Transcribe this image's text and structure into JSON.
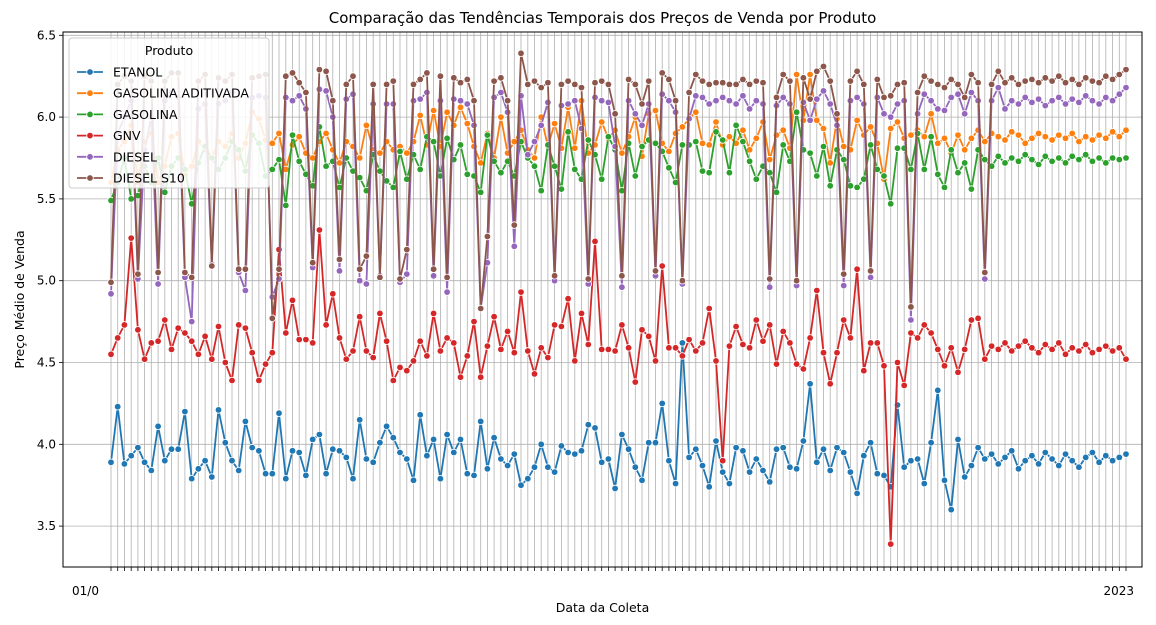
{
  "chart_data": {
    "type": "line",
    "title": "Comparação das Tendências Temporais dos Preços de Venda por Produto",
    "xlabel": "Data da Coleta",
    "ylabel": "Preço Médio de Venda",
    "ylim": [
      3.25,
      6.52
    ],
    "yticks": [
      "3.5",
      "4.0",
      "4.5",
      "5.0",
      "5.5",
      "6.0",
      "6.5"
    ],
    "grid": true,
    "legend": {
      "title": "Produto",
      "placement": "top-left"
    },
    "x_tick_text": {
      "first": "01/0",
      "last": "2023"
    },
    "n_points": 152,
    "series": [
      {
        "name": "ETANOL",
        "color": "#1f77b4",
        "values": [
          3.89,
          4.23,
          3.88,
          3.93,
          3.98,
          3.89,
          3.84,
          4.11,
          3.9,
          3.97,
          3.97,
          4.2,
          3.79,
          3.85,
          3.9,
          3.8,
          4.21,
          4.01,
          3.9,
          3.84,
          4.14,
          3.98,
          3.96,
          3.82,
          3.82,
          4.19,
          3.79,
          3.96,
          3.95,
          3.81,
          4.03,
          4.06,
          3.82,
          3.97,
          3.96,
          3.92,
          3.79,
          4.15,
          3.91,
          3.89,
          4.01,
          4.11,
          4.04,
          3.95,
          3.91,
          3.78,
          4.18,
          3.93,
          4.03,
          3.79,
          4.06,
          3.95,
          4.03,
          3.82,
          3.81,
          4.14,
          3.85,
          4.04,
          3.91,
          3.87,
          3.94,
          3.75,
          3.79,
          3.86,
          4.0,
          3.86,
          3.83,
          3.99,
          3.95,
          3.94,
          3.96,
          4.12,
          4.1,
          3.89,
          3.91,
          3.73,
          4.06,
          3.97,
          3.86,
          3.78,
          4.01,
          4.01,
          4.25,
          3.9,
          3.76,
          4.62,
          3.92,
          3.97,
          3.87,
          3.74,
          4.02,
          3.83,
          3.76,
          3.98,
          3.96,
          3.83,
          3.91,
          3.84,
          3.77,
          3.97,
          3.98,
          3.86,
          3.85,
          4.02,
          4.37,
          3.89,
          3.97,
          3.84,
          3.98,
          3.95,
          3.83,
          3.7,
          3.93,
          4.01,
          3.82,
          3.81,
          3.74,
          4.24,
          3.86,
          3.9,
          3.91,
          3.76,
          4.01,
          4.33,
          3.78,
          3.6,
          4.03,
          3.8,
          3.87,
          3.98,
          3.91,
          3.94,
          3.88,
          3.92,
          3.96,
          3.85,
          3.9,
          3.93,
          3.88,
          3.95,
          3.91,
          3.87,
          3.94,
          3.9,
          3.86,
          3.92,
          3.95,
          3.89,
          3.93,
          3.9,
          3.92,
          3.94
        ]
      },
      {
        "name": "GASOLINA ADITIVADA",
        "color": "#ff7f0e",
        "values": [
          5.6,
          5.8,
          5.85,
          5.95,
          5.6,
          5.85,
          5.9,
          5.6,
          5.7,
          5.88,
          5.9,
          5.65,
          5.7,
          5.85,
          5.8,
          5.75,
          5.85,
          5.82,
          5.9,
          5.75,
          5.84,
          6.03,
          5.99,
          5.86,
          5.84,
          5.9,
          5.68,
          5.83,
          5.88,
          5.78,
          5.75,
          5.85,
          5.9,
          5.8,
          5.72,
          5.85,
          5.82,
          5.75,
          5.95,
          5.8,
          5.78,
          5.85,
          5.8,
          5.82,
          5.78,
          5.85,
          6.01,
          5.83,
          6.04,
          5.82,
          6.03,
          5.95,
          6.06,
          5.96,
          5.82,
          5.72,
          5.9,
          5.75,
          6.0,
          5.78,
          5.85,
          5.92,
          5.8,
          5.75,
          6.0,
          5.82,
          5.96,
          5.81,
          6.06,
          5.81,
          6.1,
          5.78,
          5.83,
          5.97,
          5.87,
          5.92,
          5.78,
          5.88,
          6.0,
          5.76,
          6.02,
          6.04,
          5.84,
          5.79,
          5.9,
          5.94,
          5.99,
          6.03,
          5.84,
          5.83,
          5.97,
          5.83,
          5.88,
          5.84,
          5.92,
          5.8,
          5.87,
          5.97,
          5.74,
          5.89,
          5.92,
          5.81,
          6.26,
          5.98,
          6.26,
          5.98,
          5.93,
          5.72,
          5.99,
          5.82,
          5.8,
          5.98,
          5.89,
          5.94,
          5.84,
          5.62,
          5.93,
          5.97,
          5.87,
          5.89,
          5.92,
          5.88,
          6.02,
          5.84,
          5.87,
          5.78,
          5.89,
          5.8,
          5.87,
          5.92,
          5.85,
          5.9,
          5.88,
          5.86,
          5.91,
          5.89,
          5.84,
          5.87,
          5.9,
          5.88,
          5.86,
          5.89,
          5.87,
          5.9,
          5.85,
          5.88,
          5.86,
          5.89,
          5.87,
          5.91,
          5.88,
          5.92
        ]
      },
      {
        "name": "GASOLINA",
        "color": "#2ca02c",
        "values": [
          5.49,
          5.6,
          5.75,
          5.5,
          5.52,
          5.7,
          5.6,
          5.75,
          5.54,
          5.7,
          5.75,
          5.68,
          5.47,
          5.72,
          5.82,
          5.75,
          5.68,
          5.75,
          5.85,
          5.8,
          5.67,
          5.89,
          5.84,
          5.64,
          5.68,
          5.74,
          5.46,
          5.89,
          5.73,
          5.65,
          5.58,
          5.94,
          5.7,
          5.73,
          5.57,
          5.75,
          5.67,
          5.63,
          5.55,
          5.77,
          5.67,
          5.61,
          5.57,
          5.79,
          5.62,
          5.77,
          5.68,
          5.88,
          5.85,
          5.64,
          5.87,
          5.74,
          5.83,
          5.65,
          5.64,
          5.54,
          5.89,
          5.73,
          5.66,
          5.73,
          5.64,
          5.85,
          5.75,
          5.7,
          5.55,
          5.83,
          5.7,
          5.56,
          5.91,
          5.68,
          5.62,
          5.86,
          5.77,
          5.62,
          5.88,
          5.8,
          5.55,
          5.84,
          5.64,
          5.82,
          5.86,
          5.84,
          5.79,
          5.69,
          5.6,
          5.83,
          5.83,
          5.85,
          5.67,
          5.66,
          5.91,
          5.86,
          5.66,
          5.95,
          5.85,
          5.73,
          5.62,
          5.7,
          5.66,
          5.54,
          5.83,
          5.73,
          6.03,
          5.8,
          5.78,
          5.64,
          5.82,
          5.58,
          5.8,
          5.74,
          5.58,
          5.57,
          5.62,
          5.83,
          5.68,
          5.64,
          5.47,
          5.81,
          5.81,
          5.68,
          5.9,
          5.68,
          5.88,
          5.65,
          5.57,
          5.8,
          5.66,
          5.72,
          5.56,
          5.8,
          5.74,
          5.7,
          5.76,
          5.72,
          5.75,
          5.73,
          5.77,
          5.74,
          5.71,
          5.76,
          5.73,
          5.75,
          5.72,
          5.76,
          5.74,
          5.77,
          5.73,
          5.75,
          5.72,
          5.75,
          5.74,
          5.75
        ]
      },
      {
        "name": "GNV",
        "color": "#d62728",
        "values": [
          4.55,
          4.65,
          4.73,
          5.26,
          4.7,
          4.52,
          4.62,
          4.63,
          4.76,
          4.58,
          4.71,
          4.68,
          4.63,
          4.55,
          4.66,
          4.52,
          4.72,
          4.5,
          4.39,
          4.73,
          4.71,
          4.56,
          4.39,
          4.49,
          4.56,
          5.19,
          4.68,
          4.88,
          4.64,
          4.64,
          4.62,
          5.31,
          4.73,
          4.92,
          4.65,
          4.52,
          4.57,
          4.78,
          4.57,
          4.53,
          4.8,
          4.63,
          4.39,
          4.47,
          4.45,
          4.51,
          4.63,
          4.54,
          4.8,
          4.57,
          4.65,
          4.62,
          4.41,
          4.54,
          4.75,
          4.41,
          4.6,
          4.78,
          4.58,
          4.69,
          4.56,
          4.93,
          4.57,
          4.43,
          4.59,
          4.53,
          4.73,
          4.72,
          4.89,
          4.51,
          4.8,
          4.61,
          5.24,
          4.58,
          4.58,
          4.57,
          4.73,
          4.59,
          4.38,
          4.7,
          4.66,
          4.51,
          5.09,
          4.59,
          4.59,
          4.54,
          4.64,
          4.57,
          4.62,
          4.83,
          4.51,
          3.9,
          4.6,
          4.72,
          4.61,
          4.59,
          4.76,
          4.63,
          4.73,
          4.49,
          4.69,
          4.62,
          4.49,
          4.46,
          4.65,
          4.94,
          4.56,
          4.37,
          4.56,
          4.76,
          4.65,
          5.07,
          4.45,
          4.62,
          4.62,
          4.48,
          3.39,
          4.5,
          4.36,
          4.68,
          4.65,
          4.73,
          4.68,
          4.58,
          4.48,
          4.59,
          4.44,
          4.58,
          4.76,
          4.77,
          4.52,
          4.6,
          4.58,
          4.62,
          4.57,
          4.6,
          4.63,
          4.59,
          4.56,
          4.61,
          4.58,
          4.62,
          4.55,
          4.59,
          4.57,
          4.61,
          4.56,
          4.58,
          4.6,
          4.57,
          4.59,
          4.52
        ]
      },
      {
        "name": "DIESEL",
        "color": "#9467bd",
        "values": [
          4.92,
          5.9,
          6.0,
          6.1,
          5.01,
          5.8,
          6.0,
          4.98,
          6.1,
          6.15,
          6.12,
          5.02,
          4.75,
          6.05,
          6.08,
          5.1,
          6.08,
          6.1,
          6.15,
          5.05,
          4.94,
          6.12,
          6.13,
          6.12,
          4.9,
          5.01,
          6.12,
          6.1,
          6.13,
          6.05,
          5.08,
          6.17,
          6.16,
          6.0,
          5.06,
          6.11,
          6.14,
          5.0,
          4.98,
          6.08,
          5.03,
          6.08,
          6.08,
          4.99,
          5.04,
          6.1,
          6.11,
          6.15,
          5.03,
          6.1,
          4.93,
          6.11,
          6.1,
          6.08,
          5.95,
          4.83,
          5.11,
          6.12,
          6.15,
          6.03,
          5.21,
          6.13,
          5.77,
          5.85,
          5.95,
          6.09,
          5.0,
          6.07,
          6.08,
          6.1,
          5.93,
          4.98,
          6.12,
          6.1,
          6.09,
          5.82,
          4.96,
          6.1,
          6.02,
          5.95,
          6.08,
          5.03,
          6.14,
          6.1,
          6.03,
          4.98,
          5.99,
          6.13,
          6.12,
          6.08,
          6.1,
          6.12,
          6.1,
          6.08,
          6.13,
          6.05,
          6.1,
          6.08,
          4.96,
          6.07,
          6.12,
          6.08,
          4.97,
          6.09,
          5.98,
          6.11,
          6.16,
          6.08,
          5.95,
          4.97,
          6.1,
          6.12,
          6.08,
          5.02,
          6.12,
          6.02,
          6.0,
          6.08,
          6.1,
          4.76,
          6.02,
          6.14,
          6.1,
          6.05,
          6.04,
          6.12,
          6.14,
          6.02,
          6.15,
          6.1,
          5.01,
          6.1,
          6.18,
          6.05,
          6.1,
          6.08,
          6.12,
          6.09,
          6.11,
          6.07,
          6.1,
          6.12,
          6.08,
          6.11,
          6.09,
          6.13,
          6.1,
          6.08,
          6.12,
          6.1,
          6.14,
          6.18
        ]
      },
      {
        "name": "DIESEL S10",
        "color": "#8c564b",
        "values": [
          4.99,
          6.2,
          6.25,
          6.22,
          5.04,
          6.25,
          6.22,
          5.05,
          6.22,
          6.27,
          6.27,
          5.05,
          5.02,
          6.22,
          6.26,
          5.09,
          6.24,
          6.22,
          6.26,
          5.07,
          5.07,
          6.24,
          6.25,
          6.26,
          4.77,
          5.07,
          6.25,
          6.27,
          6.21,
          6.15,
          5.11,
          6.29,
          6.28,
          6.1,
          5.13,
          6.2,
          6.25,
          5.07,
          5.15,
          6.2,
          5.02,
          6.2,
          6.22,
          5.01,
          5.19,
          6.2,
          6.23,
          6.27,
          5.07,
          6.25,
          5.02,
          6.24,
          6.21,
          6.23,
          6.1,
          4.83,
          5.27,
          6.22,
          6.24,
          6.1,
          5.34,
          6.39,
          6.2,
          6.22,
          6.18,
          6.21,
          5.03,
          6.2,
          6.22,
          6.2,
          6.18,
          5.01,
          6.21,
          6.22,
          6.2,
          6.02,
          5.03,
          6.23,
          6.2,
          6.08,
          6.22,
          5.06,
          6.27,
          6.23,
          6.1,
          5.0,
          6.15,
          6.26,
          6.22,
          6.2,
          6.21,
          6.21,
          6.2,
          6.2,
          6.23,
          6.2,
          6.22,
          6.21,
          5.01,
          6.12,
          6.26,
          6.22,
          5.0,
          6.24,
          6.11,
          6.28,
          6.31,
          6.22,
          6.02,
          5.04,
          6.22,
          6.28,
          6.2,
          5.06,
          6.23,
          6.12,
          6.13,
          6.2,
          6.21,
          4.84,
          6.15,
          6.25,
          6.22,
          6.2,
          6.18,
          6.23,
          6.2,
          6.12,
          6.26,
          6.21,
          5.05,
          6.2,
          6.28,
          6.21,
          6.24,
          6.2,
          6.22,
          6.23,
          6.21,
          6.24,
          6.22,
          6.25,
          6.21,
          6.23,
          6.2,
          6.24,
          6.22,
          6.21,
          6.25,
          6.23,
          6.26,
          6.29
        ]
      }
    ]
  }
}
